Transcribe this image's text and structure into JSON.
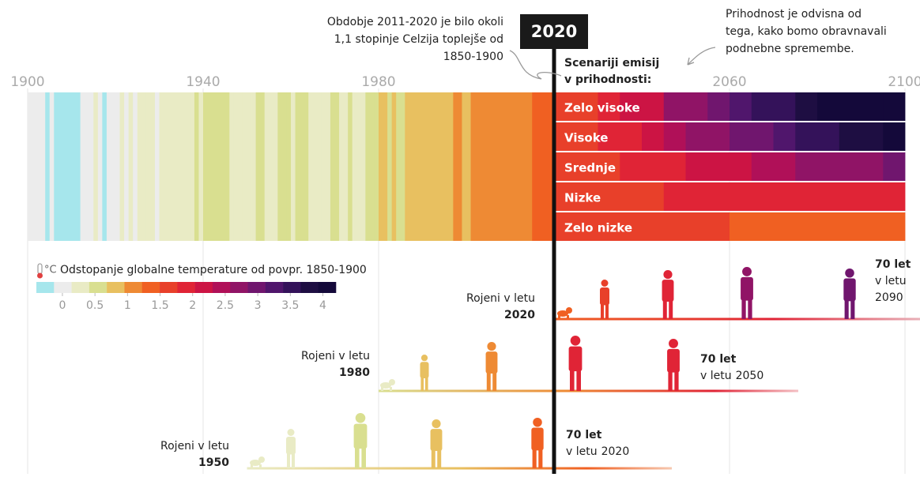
{
  "chart_data": {
    "type": "stripes",
    "xlim": [
      1900,
      2100
    ],
    "xticks": [
      1900,
      1940,
      1980,
      2060,
      2100
    ],
    "highlight_year": 2020,
    "annotation_left": [
      "Obdobje 2011-2020 je bilo okoli",
      "1,1 stopinje Celzija toplejše od",
      "1850-1900"
    ],
    "annotation_right": [
      "Prihodnost je odvisna od",
      "tega, kako bomo obravnavali",
      "podnebne spremembe."
    ],
    "scenario_title": [
      "Scenariji emisij",
      "v prihodnosti:"
    ],
    "x": [
      1900,
      1901,
      1902,
      1903,
      1904,
      1905,
      1906,
      1907,
      1908,
      1909,
      1910,
      1911,
      1912,
      1913,
      1914,
      1915,
      1916,
      1917,
      1918,
      1919,
      1920,
      1921,
      1922,
      1923,
      1924,
      1925,
      1926,
      1927,
      1928,
      1929,
      1930,
      1931,
      1932,
      1933,
      1934,
      1935,
      1936,
      1937,
      1938,
      1939,
      1940,
      1941,
      1942,
      1943,
      1944,
      1945,
      1946,
      1947,
      1948,
      1949,
      1950,
      1951,
      1952,
      1953,
      1954,
      1955,
      1956,
      1957,
      1958,
      1959,
      1960,
      1961,
      1962,
      1963,
      1964,
      1965,
      1966,
      1967,
      1968,
      1969,
      1970,
      1971,
      1972,
      1973,
      1974,
      1975,
      1976,
      1977,
      1978,
      1979,
      1980,
      1981,
      1982,
      1983,
      1984,
      1985,
      1986,
      1987,
      1988,
      1989,
      1990,
      1991,
      1992,
      1993,
      1994,
      1995,
      1996,
      1997,
      1998,
      1999,
      2000,
      2001,
      2002,
      2003,
      2004,
      2005,
      2006,
      2007,
      2008,
      2009,
      2010,
      2011,
      2012,
      2013,
      2014,
      2015,
      2016,
      2017,
      2018,
      2019
    ],
    "values": [
      0.1,
      0.05,
      -0.05,
      -0.1,
      -0.2,
      0,
      -0.15,
      -0.2,
      -0.25,
      -0.2,
      -0.2,
      -0.2,
      -0.05,
      0.05,
      0.1,
      0.15,
      -0.1,
      -0.2,
      0,
      0.1,
      0.1,
      0.15,
      0.1,
      0.15,
      0.12,
      0.2,
      0.3,
      0.2,
      0.25,
      0.1,
      0.3,
      0.35,
      0.3,
      0.15,
      0.3,
      0.25,
      0.3,
      0.4,
      0.45,
      0.4,
      0.55,
      0.5,
      0.45,
      0.5,
      0.6,
      0.45,
      0.3,
      0.35,
      0.3,
      0.3,
      0.25,
      0.4,
      0.45,
      0.5,
      0.3,
      0.3,
      0.25,
      0.45,
      0.5,
      0.45,
      0.4,
      0.5,
      0.45,
      0.48,
      0.2,
      0.3,
      0.38,
      0.4,
      0.35,
      0.5,
      0.45,
      0.35,
      0.4,
      0.6,
      0.35,
      0.4,
      0.3,
      0.6,
      0.5,
      0.6,
      0.7,
      0.75,
      0.6,
      0.8,
      0.6,
      0.6,
      0.7,
      0.85,
      0.85,
      0.75,
      0.9,
      0.85,
      0.7,
      0.75,
      0.8,
      0.95,
      0.85,
      1.0,
      1.15,
      0.9,
      0.9,
      1.0,
      1.1,
      1.1,
      1.0,
      1.15,
      1.1,
      1.1,
      1.0,
      1.1,
      1.2,
      1.05,
      1.1,
      1.15,
      1.2,
      1.3,
      1.4,
      1.35,
      1.25,
      1.35
    ],
    "scenario_x": [
      2020,
      2025,
      2030,
      2035,
      2040,
      2045,
      2050,
      2055,
      2060,
      2065,
      2070,
      2075,
      2080,
      2085,
      2090,
      2095
    ],
    "scenarios": [
      {
        "name": "Zelo visoke",
        "values": [
          1.5,
          1.7,
          1.9,
          2.1,
          2.3,
          2.6,
          2.8,
          3.0,
          3.2,
          3.4,
          3.6,
          3.8,
          4.0,
          4.2,
          4.4,
          4.5
        ]
      },
      {
        "name": "Visoke",
        "values": [
          1.5,
          1.6,
          1.8,
          2.0,
          2.2,
          2.4,
          2.6,
          2.8,
          3.0,
          3.1,
          3.3,
          3.5,
          3.6,
          3.8,
          3.9,
          4.0
        ]
      },
      {
        "name": "Srednje",
        "values": [
          1.5,
          1.6,
          1.7,
          1.8,
          1.9,
          2.0,
          2.1,
          2.2,
          2.3,
          2.4,
          2.5,
          2.6,
          2.7,
          2.8,
          2.8,
          2.9
        ]
      },
      {
        "name": "Nizke",
        "values": [
          1.5,
          1.6,
          1.6,
          1.7,
          1.7,
          1.8,
          1.8,
          1.8,
          1.8,
          1.8,
          1.8,
          1.8,
          1.8,
          1.8,
          1.8,
          1.8
        ]
      },
      {
        "name": "Zelo nizke",
        "values": [
          1.5,
          1.5,
          1.6,
          1.6,
          1.6,
          1.5,
          1.5,
          1.5,
          1.4,
          1.4,
          1.4,
          1.4,
          1.4,
          1.4,
          1.3,
          1.3
        ]
      }
    ],
    "colorbar": {
      "title": "Odstopanje globalne temperature od povpr. 1850-1900",
      "unit": "°C",
      "lim": [
        -0.4,
        4.2
      ],
      "colors": [
        "#a6e6ec",
        "#ececec",
        "#e9ebc5",
        "#d9df90",
        "#e8c060",
        "#ee8a34",
        "#f06022",
        "#e8402a",
        "#e02436",
        "#cc1444",
        "#b01058",
        "#901466",
        "#70166e",
        "#50166c",
        "#34125a",
        "#1e0e42",
        "#14093a"
      ],
      "ticks": [
        0,
        0.5,
        1,
        1.5,
        2,
        2.5,
        3,
        3.5,
        4
      ]
    },
    "generations": [
      {
        "label": "Rojeni v letu",
        "born": 2020,
        "age": "70 let",
        "in_year": "v letu",
        "year70": 2090
      },
      {
        "label": "Rojeni v letu",
        "born": 1980,
        "age": "70 let",
        "in_year": "v letu",
        "year70": 2050
      },
      {
        "label": "Rojeni v letu",
        "born": 1950,
        "age": "70 let",
        "in_year": "v letu",
        "year70": 2020
      }
    ]
  }
}
